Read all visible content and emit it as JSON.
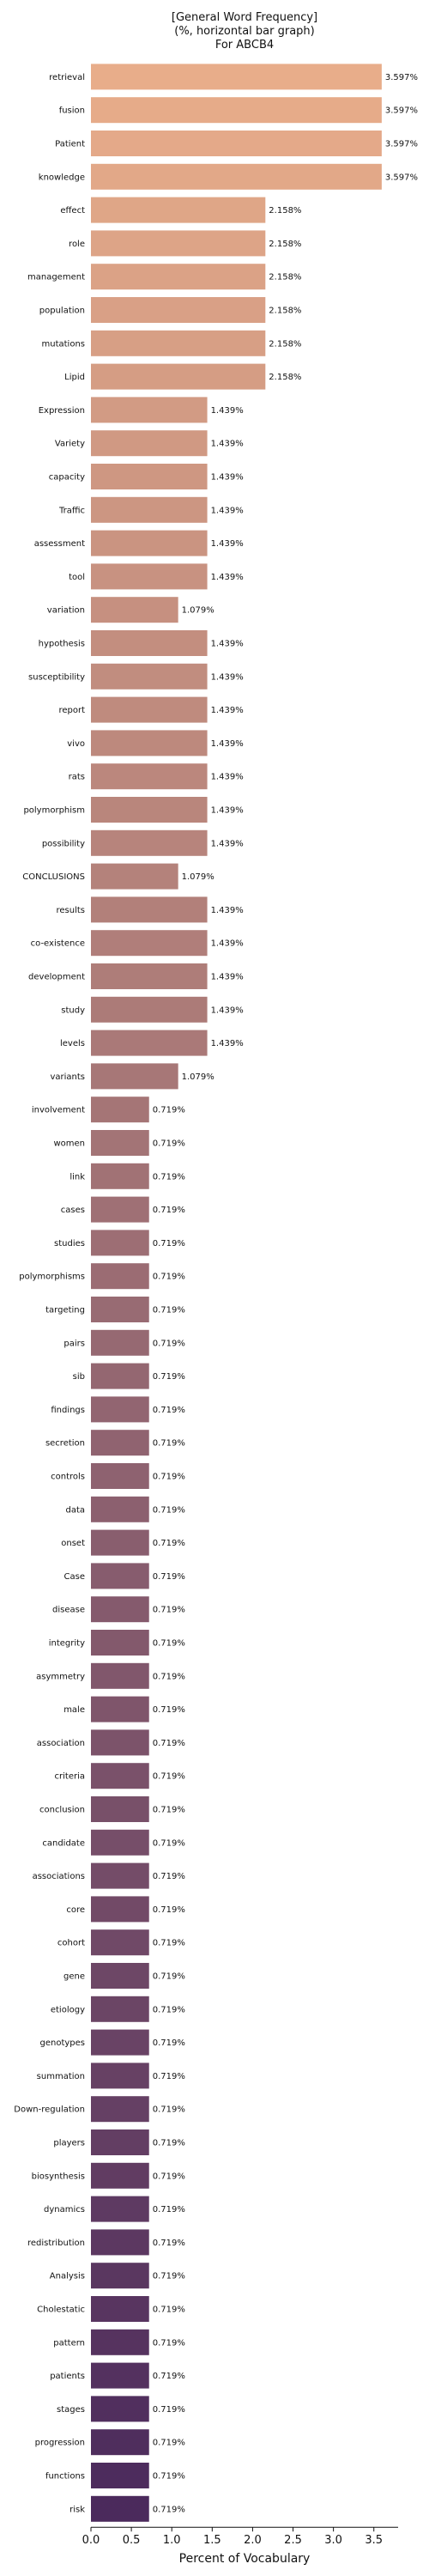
{
  "chart_data": {
    "type": "bar",
    "orientation": "horizontal",
    "title": [
      "[General Word Frequency]",
      "(%, horizontal bar graph)",
      "For ABCB4"
    ],
    "xlabel": "Percent of Vocabulary",
    "ylabel": "",
    "xlim": [
      0,
      3.8
    ],
    "xticks": [
      "0.0",
      "0.5",
      "1.0",
      "1.5",
      "2.0",
      "2.5",
      "3.0",
      "3.5"
    ],
    "grid": false,
    "legend": "none",
    "palette": {
      "start": "#e8ad8a",
      "end": "#4b2a5c"
    },
    "categories": [
      "retrieval",
      "fusion",
      "Patient",
      "knowledge",
      "effect",
      "role",
      "management",
      "population",
      "mutations",
      "Lipid",
      "Expression",
      "Variety",
      "capacity",
      "Traffic",
      "assessment",
      "tool",
      "variation",
      "hypothesis",
      "susceptibility",
      "report",
      "vivo",
      "rats",
      "polymorphism",
      "possibility",
      "CONCLUSIONS",
      "results",
      "co-existence",
      "development",
      "study",
      "levels",
      "variants",
      "involvement",
      "women",
      "link",
      "cases",
      "studies",
      "polymorphisms",
      "targeting",
      "pairs",
      "sib",
      "findings",
      "secretion",
      "controls",
      "data",
      "onset",
      "Case",
      "disease",
      "integrity",
      "asymmetry",
      "male",
      "association",
      "criteria",
      "conclusion",
      "candidate",
      "associations",
      "core",
      "cohort",
      "gene",
      "etiology",
      "genotypes",
      "summation",
      "Down-regulation",
      "players",
      "biosynthesis",
      "dynamics",
      "redistribution",
      "Analysis",
      "Cholestatic",
      "pattern",
      "patients",
      "stages",
      "progression",
      "functions",
      "risk"
    ],
    "values": [
      3.597,
      3.597,
      3.597,
      3.597,
      2.158,
      2.158,
      2.158,
      2.158,
      2.158,
      2.158,
      1.439,
      1.439,
      1.439,
      1.439,
      1.439,
      1.439,
      1.079,
      1.439,
      1.439,
      1.439,
      1.439,
      1.439,
      1.439,
      1.439,
      1.079,
      1.439,
      1.439,
      1.439,
      1.439,
      1.439,
      1.079,
      0.719,
      0.719,
      0.719,
      0.719,
      0.719,
      0.719,
      0.719,
      0.719,
      0.719,
      0.719,
      0.719,
      0.719,
      0.719,
      0.719,
      0.719,
      0.719,
      0.719,
      0.719,
      0.719,
      0.719,
      0.719,
      0.719,
      0.719,
      0.719,
      0.719,
      0.719,
      0.719,
      0.719,
      0.719,
      0.719,
      0.719,
      0.719,
      0.719,
      0.719,
      0.719,
      0.719,
      0.719,
      0.719,
      0.719,
      0.719,
      0.719,
      0.719,
      0.719
    ],
    "value_labels": [
      "3.597%",
      "3.597%",
      "3.597%",
      "3.597%",
      "2.158%",
      "2.158%",
      "2.158%",
      "2.158%",
      "2.158%",
      "2.158%",
      "1.439%",
      "1.439%",
      "1.439%",
      "1.439%",
      "1.439%",
      "1.439%",
      "1.079%",
      "1.439%",
      "1.439%",
      "1.439%",
      "1.439%",
      "1.439%",
      "1.439%",
      "1.439%",
      "1.079%",
      "1.439%",
      "1.439%",
      "1.439%",
      "1.439%",
      "1.439%",
      "1.079%",
      "0.719%",
      "0.719%",
      "0.719%",
      "0.719%",
      "0.719%",
      "0.719%",
      "0.719%",
      "0.719%",
      "0.719%",
      "0.719%",
      "0.719%",
      "0.719%",
      "0.719%",
      "0.719%",
      "0.719%",
      "0.719%",
      "0.719%",
      "0.719%",
      "0.719%",
      "0.719%",
      "0.719%",
      "0.719%",
      "0.719%",
      "0.719%",
      "0.719%",
      "0.719%",
      "0.719%",
      "0.719%",
      "0.719%",
      "0.719%",
      "0.719%",
      "0.719%",
      "0.719%",
      "0.719%",
      "0.719%",
      "0.719%",
      "0.719%",
      "0.719%",
      "0.719%",
      "0.719%",
      "0.719%",
      "0.719%",
      "0.719%"
    ]
  }
}
